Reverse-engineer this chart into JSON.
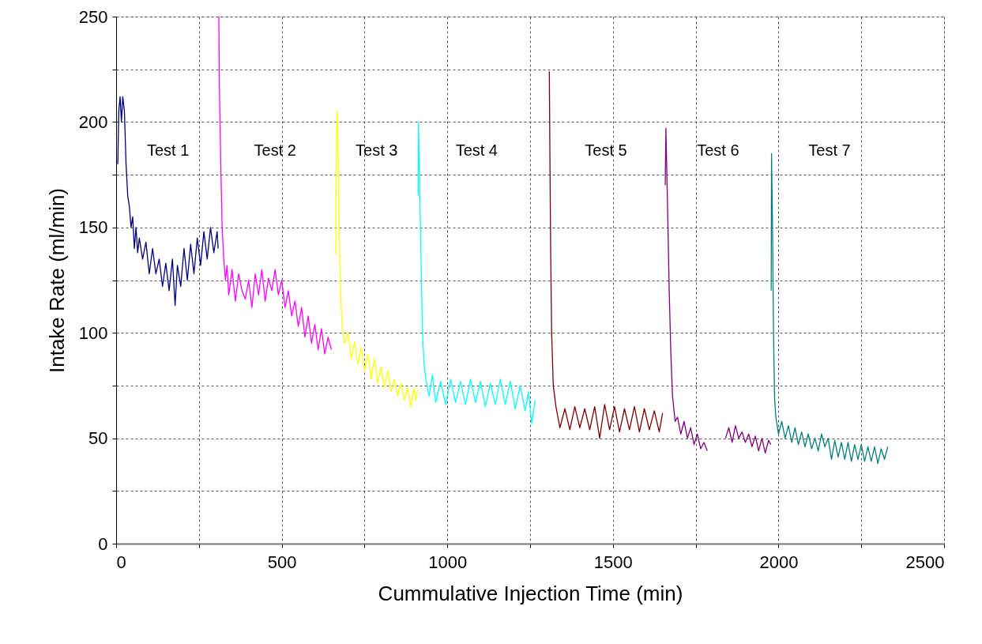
{
  "chart_data": {
    "type": "line",
    "xlabel": "Cummulative Injection Time (min)",
    "ylabel": "Intake Rate (ml/min)",
    "xlim": [
      0,
      2500
    ],
    "ylim": [
      0,
      250
    ],
    "xticks": [
      0,
      {
        "value": 250,
        "label": null
      },
      500,
      {
        "value": 750,
        "label": null
      },
      1000,
      {
        "value": 1250,
        "label": null
      },
      1500,
      {
        "value": 1750,
        "label": null
      },
      2000,
      {
        "value": 2250,
        "label": null
      },
      2500
    ],
    "yticks": [
      0,
      {
        "value": 25,
        "label": null
      },
      50,
      {
        "value": 75,
        "label": null
      },
      100,
      {
        "value": 125,
        "label": null
      },
      150,
      {
        "value": 175,
        "label": null
      },
      200,
      {
        "value": 225,
        "label": null
      },
      250
    ],
    "grid": true,
    "marker": "none",
    "line_style": "solid",
    "series": [
      {
        "name": "Test 1",
        "color": "#000080",
        "x": [
          5,
          8,
          12,
          16,
          20,
          25,
          30,
          35,
          40,
          45,
          50,
          55,
          60,
          65,
          70,
          80,
          90,
          100,
          110,
          120,
          130,
          140,
          150,
          160,
          170,
          178,
          185,
          195,
          205,
          215,
          225,
          235,
          245,
          255,
          265,
          275,
          285,
          295,
          305,
          308
        ],
        "values": [
          180,
          205,
          212,
          200,
          212,
          205,
          180,
          165,
          160,
          150,
          155,
          140,
          150,
          138,
          145,
          135,
          143,
          128,
          140,
          128,
          135,
          122,
          133,
          120,
          135,
          113,
          132,
          122,
          140,
          125,
          142,
          128,
          145,
          132,
          148,
          135,
          150,
          138,
          148,
          140
        ]
      },
      {
        "name": "Test 2",
        "color": "#ff00ff",
        "x": [
          310,
          312,
          316,
          320,
          325,
          330,
          335,
          340,
          350,
          360,
          370,
          380,
          390,
          400,
          410,
          420,
          430,
          440,
          450,
          460,
          470,
          480,
          490,
          500,
          510,
          520,
          530,
          540,
          550,
          560,
          570,
          580,
          590,
          600,
          610,
          620,
          630,
          640,
          650
        ],
        "values": [
          250,
          214,
          180,
          150,
          135,
          125,
          132,
          118,
          130,
          115,
          128,
          120,
          116,
          125,
          112,
          128,
          118,
          130,
          115,
          126,
          120,
          130,
          118,
          125,
          112,
          120,
          108,
          115,
          103,
          112,
          98,
          108,
          95,
          104,
          92,
          102,
          90,
          98,
          92
        ]
      },
      {
        "name": "Test 3",
        "color": "#ffff00",
        "x": [
          663,
          666,
          668,
          672,
          676,
          680,
          685,
          690,
          700,
          710,
          720,
          730,
          740,
          750,
          760,
          770,
          780,
          790,
          800,
          810,
          820,
          830,
          840,
          850,
          860,
          870,
          880,
          890,
          900,
          905,
          910
        ],
        "values": [
          137,
          200,
          205,
          165,
          130,
          110,
          100,
          95,
          100,
          88,
          96,
          85,
          93,
          82,
          90,
          78,
          88,
          76,
          84,
          74,
          82,
          72,
          78,
          70,
          76,
          68,
          74,
          65,
          74,
          68,
          73
        ]
      },
      {
        "name": "Test 4",
        "color": "#00ffff",
        "x": [
          912,
          913,
          916,
          920,
          925,
          930,
          935,
          945,
          955,
          965,
          980,
          995,
          1010,
          1025,
          1040,
          1055,
          1070,
          1085,
          1100,
          1115,
          1130,
          1145,
          1160,
          1175,
          1190,
          1205,
          1220,
          1235,
          1245,
          1255,
          1265
        ],
        "values": [
          165,
          200,
          175,
          140,
          100,
          85,
          78,
          70,
          80,
          67,
          77,
          66,
          78,
          67,
          77,
          66,
          78,
          67,
          77,
          65,
          76,
          66,
          78,
          66,
          77,
          64,
          75,
          63,
          72,
          57,
          68
        ]
      },
      {
        "name": "Test 5",
        "color": "#800000",
        "x": [
          1308,
          1310,
          1312,
          1315,
          1320,
          1328,
          1340,
          1355,
          1370,
          1385,
          1400,
          1415,
          1430,
          1445,
          1460,
          1475,
          1490,
          1505,
          1520,
          1535,
          1550,
          1565,
          1580,
          1595,
          1610,
          1625,
          1640,
          1650
        ],
        "values": [
          224,
          180,
          140,
          100,
          75,
          65,
          55,
          64,
          54,
          65,
          55,
          64,
          54,
          65,
          50,
          66,
          54,
          65,
          53,
          64,
          54,
          65,
          53,
          64,
          54,
          63,
          53,
          62
        ]
      },
      {
        "name": "Test 6",
        "color": "#800080",
        "x": [
          1658,
          1660,
          1665,
          1670,
          1675,
          1680,
          1688,
          1695,
          1705,
          1715,
          1725,
          1735,
          1745,
          1755,
          1765,
          1775,
          1785,
          1810,
          1840,
          1850,
          1860,
          1870,
          1880,
          1890,
          1900,
          1910,
          1920,
          1930,
          1940,
          1950,
          1960,
          1970,
          1977
        ],
        "values": [
          170,
          197,
          160,
          120,
          90,
          70,
          58,
          60,
          52,
          58,
          50,
          55,
          47,
          52,
          45,
          48,
          44,
          null,
          50,
          55,
          48,
          56,
          50,
          53,
          48,
          52,
          46,
          51,
          44,
          50,
          43,
          49,
          47
        ]
      },
      {
        "name": "Test 7",
        "color": "#008080",
        "x": [
          1978,
          1979,
          1982,
          1985,
          1988,
          1992,
          2000,
          2010,
          2020,
          2030,
          2040,
          2050,
          2060,
          2070,
          2080,
          2090,
          2100,
          2110,
          2120,
          2130,
          2140,
          2150,
          2160,
          2170,
          2180,
          2190,
          2200,
          2210,
          2220,
          2230,
          2240,
          2250,
          2260,
          2270,
          2280,
          2290,
          2300,
          2310,
          2320,
          2330
        ],
        "values": [
          120,
          185,
          150,
          100,
          70,
          60,
          52,
          58,
          50,
          56,
          48,
          55,
          47,
          53,
          46,
          52,
          45,
          50,
          44,
          52,
          46,
          50,
          40,
          49,
          41,
          48,
          40,
          48,
          39,
          47,
          40,
          47,
          39,
          46,
          39,
          46,
          38,
          45,
          40,
          46
        ]
      }
    ]
  }
}
